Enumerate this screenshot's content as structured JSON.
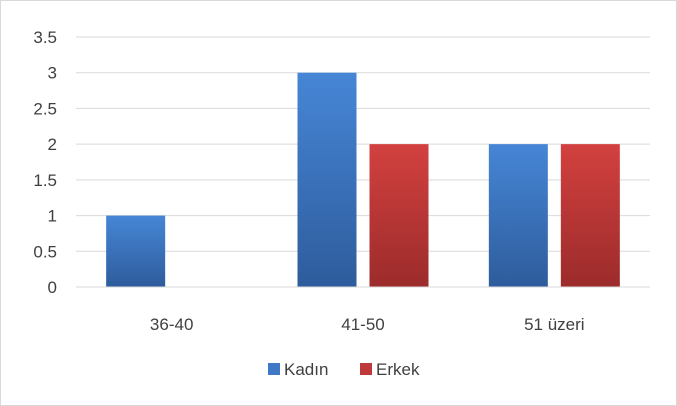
{
  "chart_data": {
    "type": "bar",
    "categories": [
      "36-40",
      "41-50",
      "51 üzeri"
    ],
    "series": [
      {
        "name": "Kadın",
        "values": [
          1,
          3,
          2
        ],
        "color": "#3e78c7"
      },
      {
        "name": "Erkek",
        "values": [
          null,
          2,
          2
        ],
        "color": "#c0393a"
      }
    ],
    "ylim": [
      0,
      3.5
    ],
    "yticks": [
      "0",
      "0.5",
      "1",
      "1.5",
      "2",
      "2.5",
      "3",
      "3.5"
    ],
    "grid": true,
    "legend": "bottom"
  }
}
